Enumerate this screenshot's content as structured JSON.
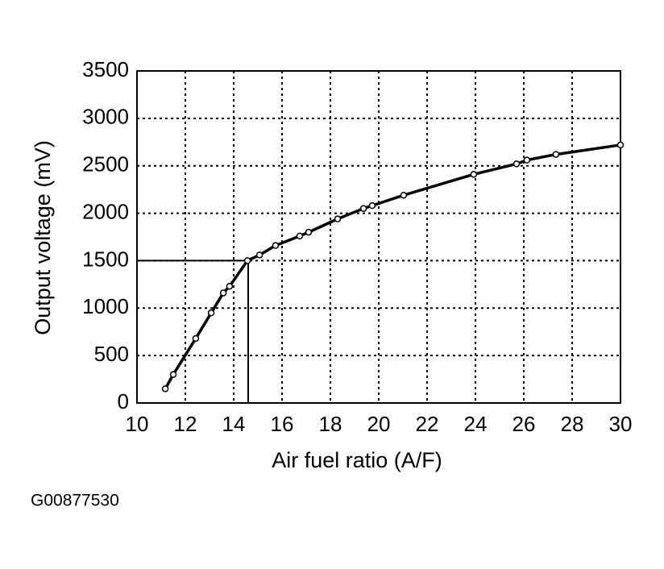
{
  "chart_data": {
    "type": "line",
    "xlabel": "Air fuel ratio (A/F)",
    "ylabel": "Output voltage (mV)",
    "caption": "G00877530",
    "x": [
      11.17,
      11.5,
      12.43,
      13.07,
      13.57,
      13.83,
      14.57,
      15.07,
      15.73,
      16.73,
      17.1,
      18.3,
      19.37,
      19.73,
      21.03,
      23.93,
      25.7,
      26.13,
      27.33,
      30
    ],
    "series": [
      {
        "name": "Output voltage",
        "color": "#000000",
        "values": [
          150,
          300,
          680,
          950,
          1160,
          1230,
          1500,
          1560,
          1660,
          1760,
          1800,
          1940,
          2050,
          2080,
          2190,
          2410,
          2520,
          2560,
          2620,
          2720
        ]
      }
    ],
    "reference": {
      "x": 14.6,
      "y": 1500
    },
    "xlim": [
      10,
      30
    ],
    "ylim": [
      0,
      3500
    ],
    "xticks": [
      10,
      12,
      14,
      16,
      18,
      20,
      22,
      24,
      26,
      28,
      30
    ],
    "yticks": [
      0,
      500,
      1000,
      1500,
      2000,
      2500,
      3000,
      3500
    ],
    "grid": true
  }
}
